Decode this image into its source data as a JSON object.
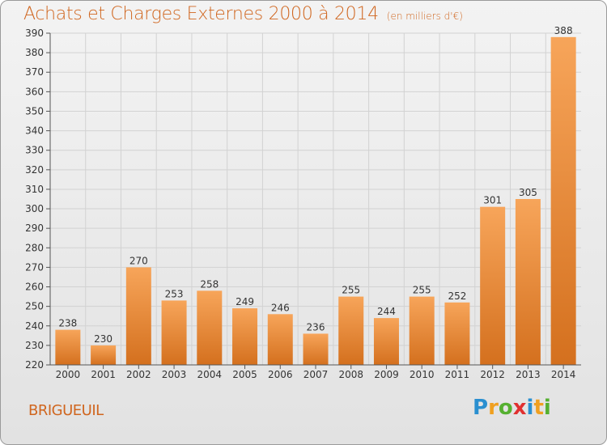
{
  "header": {
    "title": "Achats et Charges Externes 2000 à 2014",
    "unit": "(en milliers d'€)"
  },
  "footer": {
    "location": "BRIGUEUIL",
    "logo": [
      {
        "ch": "P",
        "color": "#2a8fd0"
      },
      {
        "ch": "r",
        "color": "#f0a020"
      },
      {
        "ch": "o",
        "color": "#55b030"
      },
      {
        "ch": "x",
        "color": "#e03030"
      },
      {
        "ch": "i",
        "color": "#2a8fd0"
      },
      {
        "ch": "t",
        "color": "#f0a020"
      },
      {
        "ch": "i",
        "color": "#55b030"
      }
    ]
  },
  "chart_data": {
    "type": "bar",
    "categories": [
      "2000",
      "2001",
      "2002",
      "2003",
      "2004",
      "2005",
      "2006",
      "2007",
      "2008",
      "2009",
      "2010",
      "2011",
      "2012",
      "2013",
      "2014"
    ],
    "values": [
      238,
      230,
      270,
      253,
      258,
      249,
      246,
      236,
      255,
      244,
      255,
      252,
      301,
      305,
      388
    ],
    "ylim": [
      220,
      390
    ],
    "ytick_step": 10,
    "grid": true,
    "bar_color_top": "#f7a55a",
    "bar_color_bottom": "#d4701e"
  }
}
